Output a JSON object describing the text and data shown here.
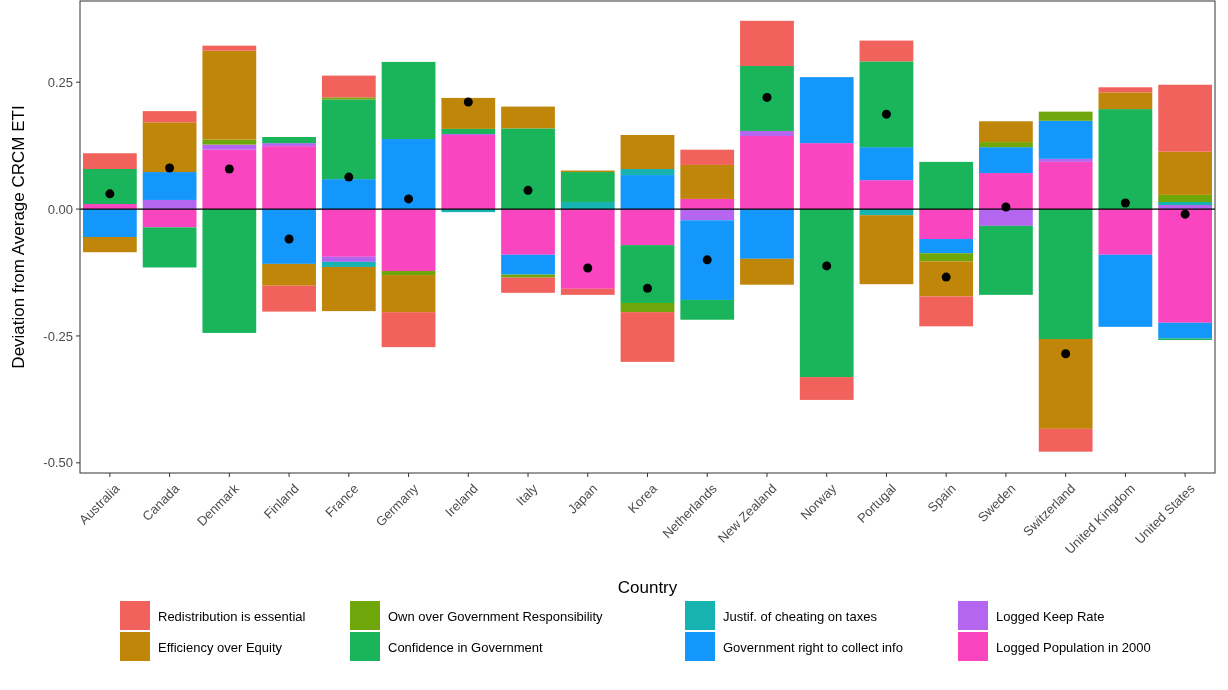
{
  "chart_data": {
    "type": "bar",
    "xlabel": "Country",
    "ylabel": "Deviation from Average CRCM ETI",
    "categories": [
      "Australia",
      "Canada",
      "Denmark",
      "Finland",
      "France",
      "Germany",
      "Ireland",
      "Italy",
      "Japan",
      "Korea",
      "Netherlands",
      "New Zealand",
      "Norway",
      "Portugal",
      "Spain",
      "Sweden",
      "Switzerland",
      "United Kingdom",
      "United States"
    ],
    "stacked": true,
    "series": [
      {
        "name": "Logged Population in 2000",
        "color": "#f945c0",
        "values": [
          0.01,
          -0.036,
          0.117,
          0.124,
          -0.094,
          -0.122,
          0.146,
          -0.09,
          -0.157,
          -0.071,
          0.02,
          0.144,
          0.13,
          0.057,
          -0.059,
          0.071,
          0.093,
          -0.09,
          -0.224
        ]
      },
      {
        "name": "Logged Keep Rate",
        "color": "#b466f0",
        "values": [
          0,
          0.018,
          0.01,
          0.006,
          -0.01,
          0,
          0.002,
          0,
          0,
          0,
          -0.022,
          0.01,
          0,
          0,
          0,
          -0.033,
          0.006,
          0,
          0.008
        ]
      },
      {
        "name": "Government right to collect info",
        "color": "#1497fa",
        "values": [
          -0.055,
          0.055,
          0,
          -0.108,
          0.059,
          0.138,
          0,
          -0.039,
          0,
          0.067,
          -0.157,
          -0.098,
          0.13,
          0.065,
          -0.028,
          0.051,
          0.075,
          -0.142,
          -0.031
        ]
      },
      {
        "name": "Justif. of cheating on taxes",
        "color": "#16b3b0",
        "values": [
          0,
          0,
          0,
          0,
          -0.01,
          0,
          -0.006,
          0,
          0.014,
          0.012,
          0,
          0,
          0,
          -0.012,
          0,
          0,
          0,
          0,
          0.006
        ]
      },
      {
        "name": "Confidence in Government",
        "color": "#1ab55a",
        "values": [
          0.069,
          -0.079,
          -0.244,
          0.012,
          0.157,
          0.152,
          0.01,
          0.159,
          0.059,
          -0.114,
          -0.039,
          0.128,
          -0.331,
          0.169,
          0.093,
          -0.136,
          -0.256,
          0.197,
          -0.003
        ]
      },
      {
        "name": "Own over Government Responsibility",
        "color": "#6fa60a",
        "values": [
          0,
          0,
          0.01,
          0,
          0.004,
          -0.008,
          0,
          -0.006,
          0,
          -0.018,
          0,
          0,
          0,
          0,
          -0.016,
          0.01,
          0.018,
          0,
          0.014
        ]
      },
      {
        "name": "Efficiency over Equity",
        "color": "#c0860a",
        "values": [
          -0.03,
          0.098,
          0.175,
          -0.043,
          -0.087,
          -0.073,
          0.061,
          0.043,
          0.003,
          0.067,
          0.067,
          -0.051,
          0,
          -0.136,
          -0.069,
          0.041,
          -0.177,
          0.033,
          0.085
        ]
      },
      {
        "name": "Redistribution is essential",
        "color": "#f2625c",
        "values": [
          0.031,
          0.022,
          0.01,
          -0.051,
          0.043,
          -0.069,
          0,
          -0.03,
          -0.012,
          -0.098,
          0.03,
          0.089,
          -0.045,
          0.041,
          -0.059,
          0,
          -0.045,
          0.01,
          0.132
        ]
      },
      {
        "type": "scatter",
        "marker": "circle",
        "color": "#000000",
        "x": [
          "Australia",
          "Canada",
          "Denmark",
          "Finland",
          "France",
          "Germany",
          "Ireland",
          "Italy",
          "Japan",
          "Korea",
          "Netherlands",
          "New Zealand",
          "Norway",
          "Portugal",
          "Spain",
          "Sweden",
          "Switzerland",
          "United Kingdom",
          "United States"
        ],
        "values": [
          0.03,
          0.081,
          0.079,
          -0.059,
          0.063,
          0.02,
          0.211,
          0.037,
          -0.116,
          -0.156,
          -0.1,
          0.22,
          -0.112,
          0.187,
          -0.134,
          0.004,
          -0.285,
          0.012,
          -0.01
        ]
      }
    ],
    "ylim": [
      -0.52,
      0.41
    ],
    "yticks": [
      {
        "value": -0.5,
        "label": "-0.50"
      },
      -0.25,
      {
        "value": 0,
        "label": "0.00"
      },
      0.25
    ],
    "ref_lines": [
      {
        "axis": "y",
        "value": 0,
        "color": "#000000"
      }
    ],
    "legend": "bottom"
  }
}
